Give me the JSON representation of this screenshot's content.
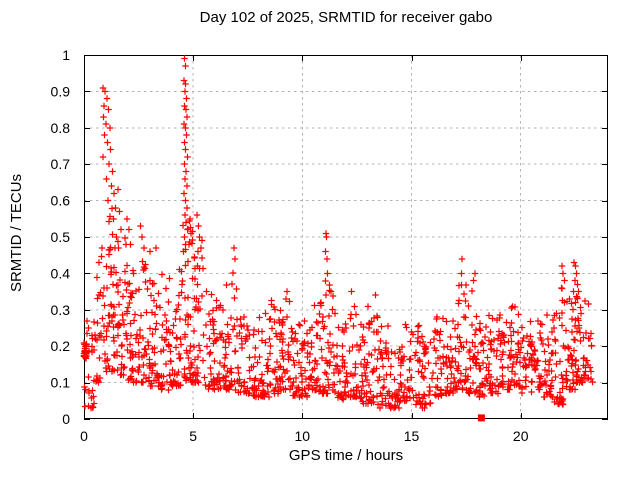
{
  "chart_data": {
    "type": "scatter",
    "title": "Day 102 of 2025, SRMTID for receiver gabo",
    "xlabel": "GPS time / hours",
    "ylabel": "SRMTID / TECUs",
    "xlim": [
      0,
      24
    ],
    "ylim": [
      0,
      1
    ],
    "xticks": [
      0,
      5,
      10,
      15,
      20
    ],
    "xtick_labels": [
      "0",
      "5",
      "10",
      "15",
      "20"
    ],
    "yticks": [
      0,
      0.1,
      0.2,
      0.3,
      0.4,
      0.5,
      0.6,
      0.7,
      0.8,
      0.9,
      1
    ],
    "ytick_labels": [
      "0",
      "0.1",
      "0.2",
      "0.3",
      "0.4",
      "0.5",
      "0.6",
      "0.7",
      "0.8",
      "0.9",
      "1"
    ],
    "grid": true,
    "legend": "none",
    "marker": {
      "shape": "plus",
      "size": 6.5,
      "color": "#ff0000"
    },
    "axis_color": "#000000",
    "grid_color": "#b3b3b3",
    "seed": 20250412,
    "band_bins_format": "[x_start_hour, x_end_hour, n_points, y_min_TECU, y_max_TECU]",
    "band_bins": [
      [
        0,
        0.5,
        26,
        0.03,
        0.27
      ],
      [
        0.5,
        1,
        30,
        0.1,
        0.45
      ],
      [
        1,
        1.5,
        46,
        0.13,
        0.58
      ],
      [
        1.5,
        2,
        40,
        0.12,
        0.5
      ],
      [
        2,
        2.5,
        38,
        0.1,
        0.42
      ],
      [
        2.5,
        3,
        36,
        0.1,
        0.44
      ],
      [
        3,
        3.5,
        38,
        0.09,
        0.4
      ],
      [
        3.5,
        4,
        36,
        0.08,
        0.4
      ],
      [
        4,
        4.5,
        38,
        0.09,
        0.42
      ],
      [
        4.5,
        5,
        44,
        0.1,
        0.55
      ],
      [
        5,
        5.5,
        36,
        0.1,
        0.5
      ],
      [
        5.5,
        6,
        32,
        0.08,
        0.38
      ],
      [
        6,
        6.5,
        32,
        0.08,
        0.33
      ],
      [
        6.5,
        7,
        34,
        0.08,
        0.42
      ],
      [
        7,
        7.5,
        32,
        0.07,
        0.29
      ],
      [
        7.5,
        8,
        32,
        0.06,
        0.25
      ],
      [
        8,
        8.5,
        32,
        0.06,
        0.29
      ],
      [
        8.5,
        9,
        32,
        0.07,
        0.33
      ],
      [
        9,
        9.5,
        36,
        0.08,
        0.34
      ],
      [
        9.5,
        10,
        32,
        0.06,
        0.26
      ],
      [
        10,
        10.5,
        32,
        0.06,
        0.29
      ],
      [
        10.5,
        11,
        34,
        0.07,
        0.33
      ],
      [
        11,
        11.5,
        38,
        0.07,
        0.38
      ],
      [
        11.5,
        12,
        32,
        0.05,
        0.27
      ],
      [
        12,
        12.5,
        32,
        0.06,
        0.33
      ],
      [
        12.5,
        13,
        32,
        0.04,
        0.26
      ],
      [
        13,
        13.5,
        32,
        0.04,
        0.31
      ],
      [
        13.5,
        14,
        32,
        0.03,
        0.27
      ],
      [
        14,
        14.5,
        32,
        0.03,
        0.2
      ],
      [
        14.5,
        15,
        32,
        0.05,
        0.29
      ],
      [
        15,
        15.5,
        30,
        0.04,
        0.28
      ],
      [
        15.5,
        16,
        30,
        0.03,
        0.23
      ],
      [
        16,
        16.5,
        32,
        0.06,
        0.29
      ],
      [
        16.5,
        17,
        32,
        0.07,
        0.29
      ],
      [
        17,
        17.5,
        36,
        0.08,
        0.37
      ],
      [
        17.5,
        18,
        34,
        0.07,
        0.36
      ],
      [
        18,
        18.5,
        32,
        0.06,
        0.28
      ],
      [
        18.5,
        19,
        32,
        0.07,
        0.29
      ],
      [
        19,
        19.5,
        32,
        0.08,
        0.31
      ],
      [
        19.5,
        20,
        36,
        0.09,
        0.31
      ],
      [
        20,
        20.5,
        32,
        0.07,
        0.27
      ],
      [
        20.5,
        21,
        32,
        0.08,
        0.27
      ],
      [
        21,
        21.5,
        32,
        0.06,
        0.29
      ],
      [
        21.5,
        22,
        36,
        0.04,
        0.36
      ],
      [
        22,
        22.5,
        36,
        0.08,
        0.34
      ],
      [
        22.5,
        23,
        42,
        0.1,
        0.34
      ],
      [
        23,
        23.3,
        14,
        0.1,
        0.32
      ]
    ],
    "clusters_format": "[x_start_hour, x_end_hour, n_points, y_min_TECU, y_max_TECU] uniform dense blob",
    "clusters": [
      [
        0,
        0.12,
        26,
        0.165,
        0.215
      ]
    ],
    "outliers_format": "[x_hour, y_TECU] individually visible high points",
    "outliers": [
      [
        0.88,
        0.91
      ],
      [
        0.97,
        0.9
      ],
      [
        1.06,
        0.88
      ],
      [
        0.92,
        0.86
      ],
      [
        1.12,
        0.85
      ],
      [
        0.9,
        0.83
      ],
      [
        1.0,
        0.81
      ],
      [
        1.18,
        0.8
      ],
      [
        0.95,
        0.78
      ],
      [
        1.08,
        0.76
      ],
      [
        1.22,
        0.74
      ],
      [
        0.87,
        0.72
      ],
      [
        1.15,
        0.7
      ],
      [
        1.3,
        0.68
      ],
      [
        1.02,
        0.66
      ],
      [
        1.26,
        0.64
      ],
      [
        1.38,
        0.62
      ],
      [
        1.1,
        0.6
      ],
      [
        1.45,
        0.58
      ],
      [
        1.55,
        0.63
      ],
      [
        1.62,
        0.57
      ],
      [
        1.7,
        0.52
      ],
      [
        1.34,
        0.55
      ],
      [
        1.48,
        0.5
      ],
      [
        0.82,
        0.47
      ],
      [
        1.58,
        0.47
      ],
      [
        1.98,
        0.55
      ],
      [
        2.06,
        0.52
      ],
      [
        2.14,
        0.48
      ],
      [
        2.58,
        0.53
      ],
      [
        2.66,
        0.5
      ],
      [
        2.74,
        0.47
      ],
      [
        3.02,
        0.46
      ],
      [
        3.3,
        0.47
      ],
      [
        4.6,
        0.99
      ],
      [
        4.65,
        0.97
      ],
      [
        4.58,
        0.93
      ],
      [
        4.66,
        0.92
      ],
      [
        4.62,
        0.9
      ],
      [
        4.7,
        0.88
      ],
      [
        4.6,
        0.86
      ],
      [
        4.67,
        0.85
      ],
      [
        4.72,
        0.83
      ],
      [
        4.58,
        0.81
      ],
      [
        4.64,
        0.8
      ],
      [
        4.7,
        0.78
      ],
      [
        4.6,
        0.76
      ],
      [
        4.66,
        0.74
      ],
      [
        4.73,
        0.72
      ],
      [
        4.61,
        0.7
      ],
      [
        4.68,
        0.68
      ],
      [
        4.63,
        0.66
      ],
      [
        4.71,
        0.64
      ],
      [
        4.59,
        0.62
      ],
      [
        4.66,
        0.6
      ],
      [
        4.72,
        0.58
      ],
      [
        4.62,
        0.56
      ],
      [
        4.68,
        0.54
      ],
      [
        4.74,
        0.52
      ],
      [
        4.6,
        0.5
      ],
      [
        4.66,
        0.48
      ],
      [
        4.56,
        0.46
      ],
      [
        4.86,
        0.55
      ],
      [
        4.9,
        0.51
      ],
      [
        4.82,
        0.48
      ],
      [
        5.18,
        0.56
      ],
      [
        5.24,
        0.53
      ],
      [
        5.3,
        0.5
      ],
      [
        5.36,
        0.47
      ],
      [
        5.22,
        0.46
      ],
      [
        6.88,
        0.47
      ],
      [
        6.92,
        0.44
      ],
      [
        9.3,
        0.35
      ],
      [
        9.25,
        0.33
      ],
      [
        11.08,
        0.51
      ],
      [
        11.1,
        0.5
      ],
      [
        11.06,
        0.46
      ],
      [
        11.12,
        0.44
      ],
      [
        11.15,
        0.4
      ],
      [
        12.25,
        0.35
      ],
      [
        13.35,
        0.34
      ],
      [
        17.32,
        0.44
      ],
      [
        17.3,
        0.4
      ],
      [
        17.9,
        0.4
      ],
      [
        17.85,
        0.38
      ],
      [
        21.9,
        0.42
      ],
      [
        21.95,
        0.4
      ],
      [
        22.0,
        0.38
      ],
      [
        21.88,
        0.36
      ],
      [
        22.45,
        0.43
      ],
      [
        22.5,
        0.42
      ],
      [
        22.55,
        0.4
      ],
      [
        22.48,
        0.38
      ],
      [
        22.6,
        0.37
      ],
      [
        22.42,
        0.35
      ],
      [
        22.65,
        0.35
      ]
    ],
    "special_points": [
      {
        "x": 18.2,
        "y": 0.003,
        "shape": "filled-square",
        "color": "#ff0000"
      }
    ]
  }
}
